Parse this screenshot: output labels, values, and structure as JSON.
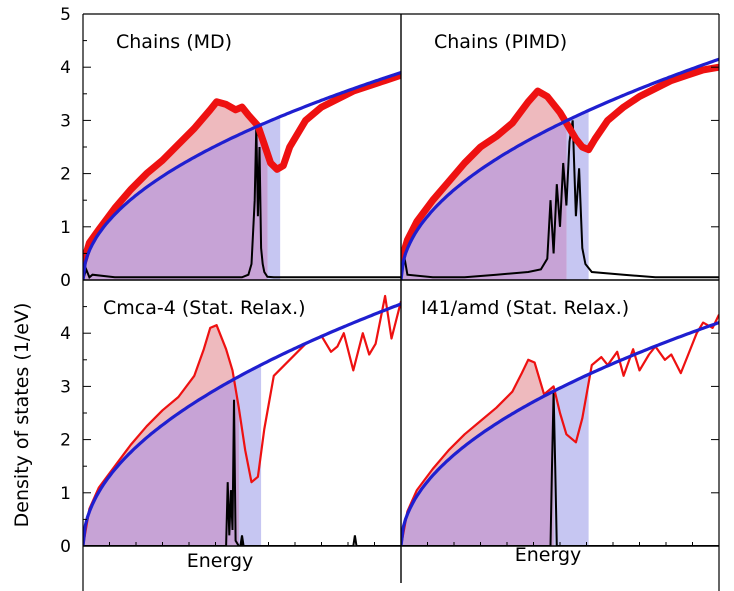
{
  "figure": {
    "ylabel": "Density of states (1/eV)",
    "xlabel": "Energy",
    "colors": {
      "total_dos": "#ee1111",
      "free_electron": "#1f1fd0",
      "proton_dos": "#000000",
      "fill_occupied": "#c7a3d6",
      "fill_red": "#e8a3a8",
      "fill_blue": "#c6c6f2"
    }
  },
  "chart_data": [
    {
      "type": "line",
      "panel": "top-left",
      "title": "Chains (MD)",
      "ylim": [
        0,
        5
      ],
      "yticks": [
        0,
        1,
        2,
        3,
        4,
        5
      ],
      "xlim": [
        0,
        1
      ],
      "fermi_x": 0.58,
      "fill_end_x": 0.62,
      "free_electron_coef": 3.9,
      "series": [
        {
          "role": "total",
          "band": true,
          "x": [
            0.0,
            0.02,
            0.05,
            0.1,
            0.15,
            0.2,
            0.25,
            0.3,
            0.35,
            0.4,
            0.42,
            0.45,
            0.48,
            0.5,
            0.52,
            0.55,
            0.57,
            0.59,
            0.61,
            0.63,
            0.65,
            0.7,
            0.75,
            0.8,
            0.85,
            0.9,
            0.95,
            1.0
          ],
          "y": [
            0.3,
            0.7,
            0.95,
            1.35,
            1.7,
            2.0,
            2.25,
            2.55,
            2.85,
            3.2,
            3.35,
            3.3,
            3.2,
            3.25,
            3.1,
            2.9,
            2.55,
            2.2,
            2.08,
            2.15,
            2.5,
            3.0,
            3.25,
            3.4,
            3.55,
            3.65,
            3.75,
            3.85
          ]
        },
        {
          "role": "proton",
          "x": [
            0.0,
            0.01,
            0.02,
            0.03,
            0.1,
            0.2,
            0.3,
            0.4,
            0.5,
            0.52,
            0.53,
            0.54,
            0.545,
            0.55,
            0.555,
            0.56,
            0.565,
            0.57,
            0.58,
            0.6,
            0.7,
            0.8,
            0.9,
            1.0
          ],
          "y": [
            0.0,
            0.2,
            0.05,
            0.1,
            0.05,
            0.05,
            0.05,
            0.05,
            0.05,
            0.1,
            0.3,
            1.5,
            2.9,
            1.2,
            2.5,
            0.6,
            0.3,
            0.15,
            0.06,
            0.05,
            0.05,
            0.05,
            0.05,
            0.05
          ]
        }
      ]
    },
    {
      "type": "line",
      "panel": "top-right",
      "title": "Chains (PIMD)",
      "ylim": [
        0,
        5
      ],
      "yticks": [
        0,
        1,
        2,
        3,
        4,
        5
      ],
      "xlim": [
        0,
        1
      ],
      "fermi_x": 0.52,
      "fill_end_x": 0.59,
      "free_electron_coef": 4.15,
      "series": [
        {
          "role": "total",
          "band": true,
          "x": [
            0.0,
            0.02,
            0.05,
            0.1,
            0.15,
            0.2,
            0.25,
            0.3,
            0.35,
            0.4,
            0.43,
            0.46,
            0.5,
            0.52,
            0.55,
            0.57,
            0.59,
            0.61,
            0.65,
            0.7,
            0.75,
            0.8,
            0.85,
            0.9,
            0.95,
            1.0
          ],
          "y": [
            0.35,
            0.75,
            1.1,
            1.5,
            1.85,
            2.2,
            2.5,
            2.7,
            2.95,
            3.35,
            3.55,
            3.45,
            3.15,
            2.95,
            2.65,
            2.5,
            2.45,
            2.65,
            3.0,
            3.25,
            3.45,
            3.6,
            3.75,
            3.85,
            3.95,
            4.0
          ]
        },
        {
          "role": "proton",
          "x": [
            0.0,
            0.01,
            0.02,
            0.1,
            0.2,
            0.3,
            0.4,
            0.44,
            0.46,
            0.47,
            0.48,
            0.49,
            0.5,
            0.51,
            0.52,
            0.53,
            0.54,
            0.55,
            0.56,
            0.57,
            0.58,
            0.6,
            0.7,
            0.8,
            0.9,
            1.0
          ],
          "y": [
            0.0,
            0.45,
            0.1,
            0.05,
            0.05,
            0.1,
            0.15,
            0.2,
            0.4,
            1.5,
            0.5,
            1.8,
            1.0,
            2.2,
            1.4,
            2.6,
            3.0,
            1.2,
            2.1,
            0.6,
            0.3,
            0.15,
            0.1,
            0.05,
            0.05,
            0.05
          ]
        }
      ]
    },
    {
      "type": "line",
      "panel": "bottom-left",
      "title": "Cmca-4 (Stat. Relax.)",
      "ylim": [
        0,
        5
      ],
      "yticks": [
        0,
        1,
        2,
        3,
        4
      ],
      "xlim": [
        0,
        1
      ],
      "fermi_x": 0.49,
      "fill_end_x": 0.56,
      "free_electron_coef": 4.55,
      "series": [
        {
          "role": "total",
          "x": [
            0.0,
            0.02,
            0.05,
            0.1,
            0.15,
            0.2,
            0.25,
            0.3,
            0.35,
            0.38,
            0.4,
            0.42,
            0.45,
            0.47,
            0.49,
            0.51,
            0.53,
            0.55,
            0.57,
            0.6,
            0.65,
            0.7,
            0.75,
            0.78,
            0.8,
            0.82,
            0.85,
            0.88,
            0.9,
            0.92,
            0.95,
            0.97,
            1.0
          ],
          "y": [
            0.0,
            0.7,
            1.1,
            1.5,
            1.9,
            2.25,
            2.55,
            2.8,
            3.2,
            3.7,
            4.1,
            4.15,
            3.7,
            3.3,
            2.6,
            1.8,
            1.2,
            1.3,
            2.2,
            3.2,
            3.5,
            3.8,
            3.95,
            3.65,
            3.75,
            4.0,
            3.3,
            4.0,
            3.6,
            3.8,
            4.7,
            3.9,
            4.6
          ]
        },
        {
          "role": "proton",
          "x": [
            0.0,
            0.44,
            0.45,
            0.455,
            0.46,
            0.465,
            0.47,
            0.475,
            0.48,
            0.49,
            0.495,
            0.5,
            0.505,
            0.51,
            0.52,
            0.85,
            0.855,
            0.86,
            0.87,
            1.0
          ],
          "y": [
            0.0,
            0.0,
            0.0,
            1.2,
            0.2,
            1.05,
            0.3,
            2.75,
            0.1,
            0.0,
            0.0,
            0.2,
            0.0,
            0.0,
            0.0,
            0.0,
            0.2,
            0.0,
            0.0,
            0.0
          ]
        }
      ]
    },
    {
      "type": "line",
      "panel": "bottom-right",
      "title": "I41/amd (Stat. Relax.)",
      "ylim": [
        0,
        5
      ],
      "yticks": [
        0,
        1,
        2,
        3,
        4
      ],
      "xlim": [
        0,
        1
      ],
      "fermi_x": 0.48,
      "fill_end_x": 0.59,
      "free_electron_coef": 4.2,
      "series": [
        {
          "role": "total",
          "x": [
            0.0,
            0.02,
            0.05,
            0.1,
            0.15,
            0.2,
            0.25,
            0.3,
            0.35,
            0.38,
            0.4,
            0.42,
            0.45,
            0.48,
            0.5,
            0.52,
            0.55,
            0.57,
            0.6,
            0.63,
            0.65,
            0.68,
            0.7,
            0.73,
            0.75,
            0.78,
            0.8,
            0.83,
            0.85,
            0.88,
            0.9,
            0.93,
            0.95,
            0.98,
            1.0
          ],
          "y": [
            0.0,
            0.65,
            1.05,
            1.45,
            1.8,
            2.1,
            2.35,
            2.6,
            2.9,
            3.25,
            3.5,
            3.45,
            2.85,
            3.0,
            2.5,
            2.1,
            1.95,
            2.4,
            3.4,
            3.55,
            3.4,
            3.65,
            3.2,
            3.7,
            3.3,
            3.6,
            3.75,
            3.5,
            3.6,
            3.25,
            3.55,
            4.0,
            4.2,
            4.1,
            4.35
          ]
        },
        {
          "role": "proton",
          "x": [
            0.0,
            0.47,
            0.475,
            0.48,
            0.485,
            0.49,
            1.0
          ],
          "y": [
            0.0,
            0.0,
            1.5,
            2.9,
            1.5,
            0.0,
            0.0
          ]
        }
      ]
    }
  ]
}
